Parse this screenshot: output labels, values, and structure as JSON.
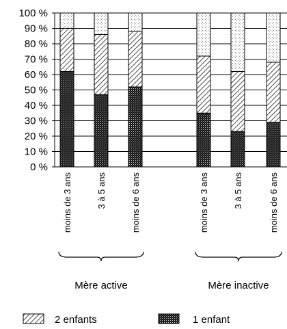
{
  "chart_data": {
    "type": "bar",
    "stacked": true,
    "percent": true,
    "ylim": [
      0,
      100
    ],
    "yticks": [
      "0 %",
      "10 %",
      "20 %",
      "30 %",
      "40 %",
      "50 %",
      "60 %",
      "70 %",
      "80 %",
      "90 %",
      "100 %"
    ],
    "grid": true,
    "groups": [
      {
        "label": "Mère active",
        "categories": [
          "moins de 3 ans",
          "3 à 5 ans",
          "moins de 6 ans"
        ],
        "series": [
          {
            "name": "1 enfant",
            "values": [
              62,
              47,
              52
            ]
          },
          {
            "name": "2 enfants",
            "values": [
              28,
              39,
              36
            ]
          },
          {
            "name": "",
            "values": [
              10,
              14,
              12
            ]
          }
        ]
      },
      {
        "label": "Mère inactive",
        "categories": [
          "moins de 3 ans",
          "3 à 5 ans",
          "moins de 6 ans"
        ],
        "series": [
          {
            "name": "1 enfant",
            "values": [
              35,
              23,
              29
            ]
          },
          {
            "name": "2 enfants",
            "values": [
              37,
              39,
              39
            ]
          },
          {
            "name": "",
            "values": [
              28,
              38,
              32
            ]
          }
        ]
      }
    ],
    "legend": {
      "placement": "bottom",
      "entries": [
        {
          "name": "2 enfants",
          "pattern": "hatch"
        },
        {
          "name": "1 enfant",
          "pattern": "dark-dots"
        }
      ]
    }
  }
}
